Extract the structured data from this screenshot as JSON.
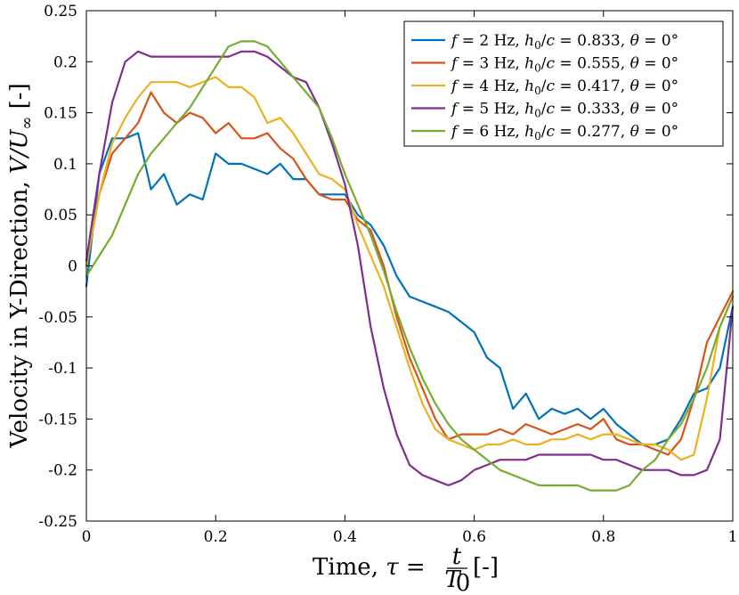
{
  "chart_data": {
    "type": "line",
    "title": "",
    "xlabel": "Time, τ = t/T0 [-]",
    "xlabel_parts": {
      "prefix": "Time, ",
      "tau": "τ",
      "eq": " = ",
      "num": "t",
      "den": "T",
      "den_sub": "0",
      "suffix": " [-]"
    },
    "ylabel": "Velocity in Y-Direction, V/U∞ [-]",
    "ylabel_parts": {
      "prefix": "Velocity in Y-Direction, ",
      "math": "V/U",
      "sub": "∞",
      "suffix": " [-]"
    },
    "xlim": [
      0,
      1
    ],
    "ylim": [
      -0.25,
      0.25
    ],
    "xticks": [
      0,
      0.2,
      0.4,
      0.6,
      0.8,
      1
    ],
    "xtick_labels": [
      "0",
      "0.2",
      "0.4",
      "0.6",
      "0.8",
      "1"
    ],
    "yticks": [
      -0.25,
      -0.2,
      -0.15,
      -0.1,
      -0.05,
      0,
      0.05,
      0.1,
      0.15,
      0.2,
      0.25
    ],
    "ytick_labels": [
      "-0.25",
      "-0.2",
      "-0.15",
      "-0.1",
      "-0.05",
      "0",
      "0.05",
      "0.1",
      "0.15",
      "0.2",
      "0.25"
    ],
    "grid": false,
    "legend_position": "top-right",
    "x": [
      0,
      0.02,
      0.04,
      0.06,
      0.08,
      0.1,
      0.12,
      0.14,
      0.16,
      0.18,
      0.2,
      0.22,
      0.24,
      0.26,
      0.28,
      0.3,
      0.32,
      0.34,
      0.36,
      0.38,
      0.4,
      0.42,
      0.44,
      0.46,
      0.48,
      0.5,
      0.52,
      0.54,
      0.56,
      0.58,
      0.6,
      0.62,
      0.64,
      0.66,
      0.68,
      0.7,
      0.72,
      0.74,
      0.76,
      0.78,
      0.8,
      0.82,
      0.84,
      0.86,
      0.88,
      0.9,
      0.92,
      0.94,
      0.96,
      0.98,
      1.0
    ],
    "series": [
      {
        "name": "f = 2 Hz, h0/c = 0.833, θ = 0°",
        "legend": {
          "f": "2",
          "h": "0.833"
        },
        "color": "#0072BD",
        "values": [
          -0.02,
          0.09,
          0.125,
          0.125,
          0.13,
          0.075,
          0.09,
          0.06,
          0.07,
          0.065,
          0.11,
          0.1,
          0.1,
          0.095,
          0.09,
          0.1,
          0.085,
          0.085,
          0.07,
          0.07,
          0.07,
          0.05,
          0.04,
          0.02,
          -0.01,
          -0.03,
          -0.035,
          -0.04,
          -0.045,
          -0.055,
          -0.065,
          -0.09,
          -0.1,
          -0.14,
          -0.125,
          -0.15,
          -0.14,
          -0.145,
          -0.14,
          -0.15,
          -0.14,
          -0.155,
          -0.165,
          -0.175,
          -0.175,
          -0.17,
          -0.15,
          -0.125,
          -0.12,
          -0.1,
          -0.04
        ]
      },
      {
        "name": "f = 3 Hz, h0/c = 0.555, θ = 0°",
        "legend": {
          "f": "3",
          "h": "0.555"
        },
        "color": "#D95319",
        "values": [
          0,
          0.07,
          0.11,
          0.125,
          0.14,
          0.17,
          0.15,
          0.14,
          0.15,
          0.145,
          0.13,
          0.14,
          0.125,
          0.125,
          0.13,
          0.115,
          0.105,
          0.085,
          0.07,
          0.065,
          0.065,
          0.045,
          0.035,
          0.0,
          -0.05,
          -0.09,
          -0.12,
          -0.15,
          -0.17,
          -0.165,
          -0.165,
          -0.165,
          -0.16,
          -0.165,
          -0.155,
          -0.16,
          -0.165,
          -0.16,
          -0.155,
          -0.16,
          -0.15,
          -0.17,
          -0.175,
          -0.175,
          -0.18,
          -0.185,
          -0.17,
          -0.13,
          -0.075,
          -0.05,
          -0.025
        ]
      },
      {
        "name": "f = 4 Hz, h0/c = 0.417, θ = 0°",
        "legend": {
          "f": "4",
          "h": "0.417"
        },
        "color": "#EDB120",
        "values": [
          0,
          0.07,
          0.12,
          0.145,
          0.165,
          0.18,
          0.18,
          0.18,
          0.175,
          0.18,
          0.185,
          0.175,
          0.175,
          0.165,
          0.14,
          0.145,
          0.13,
          0.11,
          0.09,
          0.085,
          0.075,
          0.04,
          0.01,
          -0.02,
          -0.06,
          -0.1,
          -0.135,
          -0.16,
          -0.17,
          -0.175,
          -0.18,
          -0.175,
          -0.175,
          -0.17,
          -0.175,
          -0.175,
          -0.17,
          -0.17,
          -0.165,
          -0.17,
          -0.165,
          -0.165,
          -0.17,
          -0.175,
          -0.175,
          -0.18,
          -0.19,
          -0.185,
          -0.13,
          -0.06,
          -0.03
        ]
      },
      {
        "name": "f = 5 Hz, h0/c = 0.333, θ = 0°",
        "legend": {
          "f": "5",
          "h": "0.333"
        },
        "color": "#7E2F8E",
        "values": [
          0.005,
          0.09,
          0.16,
          0.2,
          0.21,
          0.205,
          0.205,
          0.205,
          0.205,
          0.205,
          0.205,
          0.205,
          0.21,
          0.21,
          0.205,
          0.195,
          0.185,
          0.18,
          0.155,
          0.12,
          0.08,
          0.02,
          -0.06,
          -0.12,
          -0.165,
          -0.195,
          -0.205,
          -0.21,
          -0.215,
          -0.21,
          -0.2,
          -0.195,
          -0.19,
          -0.19,
          -0.19,
          -0.185,
          -0.185,
          -0.185,
          -0.185,
          -0.185,
          -0.19,
          -0.19,
          -0.195,
          -0.2,
          -0.2,
          -0.2,
          -0.205,
          -0.205,
          -0.2,
          -0.17,
          -0.04
        ]
      },
      {
        "name": "f = 6 Hz, h0/c = 0.277, θ = 0°",
        "legend": {
          "f": "6",
          "h": "0.277"
        },
        "color": "#77AC30",
        "values": [
          -0.01,
          0.01,
          0.03,
          0.06,
          0.09,
          0.11,
          0.125,
          0.14,
          0.155,
          0.175,
          0.195,
          0.215,
          0.22,
          0.22,
          0.215,
          0.2,
          0.185,
          0.17,
          0.155,
          0.125,
          0.09,
          0.06,
          0.03,
          -0.005,
          -0.045,
          -0.08,
          -0.11,
          -0.135,
          -0.155,
          -0.17,
          -0.18,
          -0.19,
          -0.2,
          -0.205,
          -0.21,
          -0.215,
          -0.215,
          -0.215,
          -0.215,
          -0.22,
          -0.22,
          -0.22,
          -0.215,
          -0.2,
          -0.19,
          -0.17,
          -0.155,
          -0.13,
          -0.1,
          -0.06,
          -0.03
        ]
      }
    ]
  }
}
